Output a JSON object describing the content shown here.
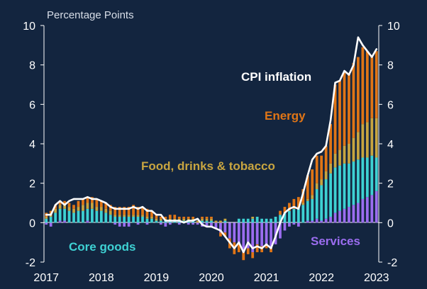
{
  "chart_data": {
    "type": "bar",
    "stacked": true,
    "unit_label": "Percentage Points",
    "title": "",
    "xlabel": "",
    "ylabel": "",
    "ylim": [
      -2,
      10
    ],
    "y_ticks": [
      -2,
      0,
      2,
      4,
      6,
      8,
      10
    ],
    "x_ticks": [
      "2017",
      "2018",
      "2019",
      "2020",
      "2021",
      "2022",
      "2023"
    ],
    "x_range": [
      "2017-01",
      "2023-01"
    ],
    "grid": false,
    "legend": "none",
    "annotations": {
      "cpi": "CPI inflation",
      "energy": "Energy",
      "food": "Food, drinks & tobacco",
      "core": "Core goods",
      "services": "Services"
    },
    "categories": [
      "2017-01",
      "2017-02",
      "2017-03",
      "2017-04",
      "2017-05",
      "2017-06",
      "2017-07",
      "2017-08",
      "2017-09",
      "2017-10",
      "2017-11",
      "2017-12",
      "2018-01",
      "2018-02",
      "2018-03",
      "2018-04",
      "2018-05",
      "2018-06",
      "2018-07",
      "2018-08",
      "2018-09",
      "2018-10",
      "2018-11",
      "2018-12",
      "2019-01",
      "2019-02",
      "2019-03",
      "2019-04",
      "2019-05",
      "2019-06",
      "2019-07",
      "2019-08",
      "2019-09",
      "2019-10",
      "2019-11",
      "2019-12",
      "2020-01",
      "2020-02",
      "2020-03",
      "2020-04",
      "2020-05",
      "2020-06",
      "2020-07",
      "2020-08",
      "2020-09",
      "2020-10",
      "2020-11",
      "2020-12",
      "2021-01",
      "2021-02",
      "2021-03",
      "2021-04",
      "2021-05",
      "2021-06",
      "2021-07",
      "2021-08",
      "2021-09",
      "2021-10",
      "2021-11",
      "2021-12",
      "2022-01",
      "2022-02",
      "2022-03",
      "2022-04",
      "2022-05",
      "2022-06",
      "2022-07",
      "2022-08",
      "2022-09",
      "2022-10",
      "2022-11",
      "2022-12",
      "2023-01"
    ],
    "series": [
      {
        "name": "Services",
        "color": "#9b6df0",
        "values": [
          -0.1,
          -0.2,
          0.0,
          0.1,
          0.1,
          0.0,
          0.0,
          0.0,
          0.0,
          0.1,
          0.0,
          0.0,
          0.0,
          0.0,
          0.0,
          -0.1,
          -0.2,
          -0.2,
          -0.2,
          0.0,
          -0.1,
          0.0,
          -0.1,
          0.0,
          0.0,
          -0.1,
          -0.2,
          -0.1,
          0.0,
          -0.1,
          0.0,
          -0.1,
          -0.1,
          -0.1,
          -0.2,
          -0.2,
          -0.2,
          -0.3,
          -0.5,
          -0.5,
          -0.8,
          -1.0,
          -1.1,
          -1.5,
          -1.3,
          -1.5,
          -1.1,
          -1.2,
          -1.1,
          -1.3,
          -1.1,
          -0.8,
          -0.4,
          -0.2,
          -0.1,
          -0.2,
          0.0,
          0.1,
          0.1,
          0.2,
          0.1,
          0.2,
          0.3,
          0.5,
          0.6,
          0.7,
          0.8,
          0.9,
          1.0,
          1.2,
          1.3,
          1.4,
          1.6
        ]
      },
      {
        "name": "Core goods",
        "color": "#3ed1d3",
        "values": [
          0.2,
          0.3,
          0.5,
          0.6,
          0.6,
          0.6,
          0.5,
          0.6,
          0.6,
          0.6,
          0.7,
          0.6,
          0.6,
          0.5,
          0.4,
          0.3,
          0.3,
          0.3,
          0.3,
          0.3,
          0.3,
          0.3,
          0.2,
          0.2,
          0.1,
          0.1,
          0.1,
          0.1,
          0.1,
          0.1,
          0.1,
          0.1,
          0.1,
          0.0,
          0.1,
          0.1,
          0.1,
          0.0,
          0.0,
          0.1,
          0.0,
          0.0,
          0.2,
          0.2,
          0.2,
          0.2,
          0.3,
          0.2,
          0.2,
          0.2,
          0.3,
          0.4,
          0.5,
          0.6,
          0.7,
          0.7,
          0.9,
          1.0,
          1.1,
          1.5,
          1.8,
          2.0,
          2.2,
          2.3,
          2.3,
          2.3,
          2.2,
          2.2,
          2.2,
          2.1,
          2.0,
          2.0,
          1.7
        ]
      },
      {
        "name": "Food, drinks & tobacco",
        "color": "#c8a540",
        "values": [
          0.1,
          0.1,
          0.2,
          0.2,
          0.2,
          0.2,
          0.2,
          0.2,
          0.3,
          0.3,
          0.3,
          0.2,
          0.2,
          0.2,
          0.2,
          0.1,
          0.1,
          0.1,
          0.1,
          0.1,
          0.1,
          0.1,
          0.1,
          0.1,
          0.1,
          0.1,
          0.1,
          0.1,
          0.1,
          0.1,
          0.1,
          0.1,
          0.1,
          0.1,
          0.1,
          0.1,
          0.1,
          0.1,
          0.1,
          0.1,
          0.0,
          0.0,
          0.0,
          0.0,
          0.0,
          0.1,
          0.0,
          0.0,
          0.0,
          0.0,
          0.0,
          0.0,
          0.0,
          0.0,
          0.0,
          0.0,
          0.1,
          0.1,
          0.2,
          0.3,
          0.3,
          0.4,
          0.5,
          0.7,
          0.8,
          0.9,
          1.0,
          1.2,
          1.4,
          1.7,
          1.8,
          1.9,
          2.0
        ]
      },
      {
        "name": "Energy",
        "color": "#e07516",
        "values": [
          0.2,
          0.2,
          0.2,
          0.2,
          0.2,
          0.2,
          0.2,
          0.3,
          0.3,
          0.3,
          0.3,
          0.4,
          0.3,
          0.3,
          0.3,
          0.4,
          0.4,
          0.4,
          0.4,
          0.5,
          0.4,
          0.4,
          0.4,
          0.3,
          0.2,
          0.1,
          0.1,
          0.2,
          0.2,
          0.1,
          0.1,
          0.1,
          0.1,
          0.0,
          0.1,
          0.1,
          0.1,
          0.0,
          -0.2,
          -0.2,
          -0.5,
          -0.6,
          -0.4,
          -0.4,
          -0.3,
          -0.3,
          -0.4,
          -0.3,
          -0.2,
          -0.2,
          0.0,
          0.2,
          0.3,
          0.4,
          0.5,
          0.6,
          0.7,
          1.2,
          1.3,
          1.4,
          1.2,
          1.3,
          2.0,
          3.5,
          3.5,
          3.7,
          3.6,
          3.8,
          3.8,
          3.9,
          3.6,
          3.1,
          3.4
        ]
      }
    ],
    "cpi_line": {
      "name": "CPI inflation",
      "color": "#ffffff",
      "values": [
        0.4,
        0.4,
        0.9,
        1.1,
        0.9,
        1.1,
        1.2,
        1.2,
        1.2,
        1.3,
        1.2,
        1.2,
        1.1,
        1.0,
        0.8,
        0.7,
        0.7,
        0.7,
        0.7,
        0.8,
        0.7,
        0.8,
        0.6,
        0.6,
        0.4,
        0.4,
        0.1,
        0.1,
        0.1,
        0.1,
        0.0,
        0.1,
        0.1,
        0.2,
        -0.1,
        -0.2,
        -0.2,
        -0.3,
        -0.4,
        -0.7,
        -1.0,
        -1.3,
        -1.0,
        -1.5,
        -1.0,
        -1.3,
        -1.2,
        -1.3,
        -1.1,
        -1.3,
        -0.7,
        0.0,
        0.5,
        0.7,
        0.8,
        0.7,
        1.5,
        2.4,
        3.2,
        3.5,
        3.6,
        3.9,
        5.2,
        7.1,
        7.2,
        7.7,
        7.5,
        8.0,
        9.4,
        9.0,
        8.7,
        8.4,
        8.8
      ]
    }
  }
}
